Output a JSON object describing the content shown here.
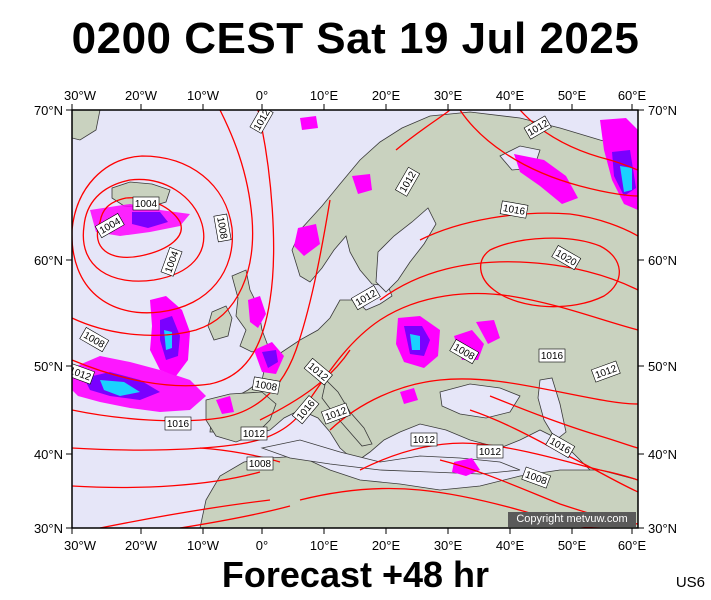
{
  "title": "0200 CEST Sat 19 Jul 2025",
  "footer": "Forecast +48 hr",
  "code": "US6",
  "copyright": "Copyright metvuw.com",
  "top_ticks": [
    "30°W",
    "20°W",
    "10°W",
    "0°",
    "10°E",
    "20°E",
    "30°E",
    "40°E",
    "50°E",
    "60°E"
  ],
  "bottom_ticks": [
    "30°W",
    "20°W",
    "10°W",
    "0°",
    "10°E",
    "20°E",
    "30°E",
    "40°E",
    "50°E",
    "60°E"
  ],
  "left_ticks": [
    "70°N",
    "60°N",
    "50°N",
    "40°N",
    "30°N"
  ],
  "right_ticks": [
    "70°N",
    "60°N",
    "50°N",
    "40°N",
    "30°N"
  ],
  "isobar_labels": [
    "1012",
    "1012",
    "1004",
    "1004",
    "1008",
    "1004",
    "1008",
    "1012",
    "1012",
    "1016",
    "1020",
    "1012",
    "1016",
    "1008",
    "1012",
    "1016",
    "1012",
    "1016",
    "1012",
    "1008",
    "1012",
    "1016",
    "1012",
    "1008",
    "1008",
    "1012"
  ],
  "colors": {
    "ocean": "#e6e6f8",
    "land": "#c9d2bf",
    "isobar": "#ff0000",
    "rain_light": "#ff00ff",
    "rain_mid": "#7a00ff",
    "rain_heavy": "#00aaff"
  }
}
